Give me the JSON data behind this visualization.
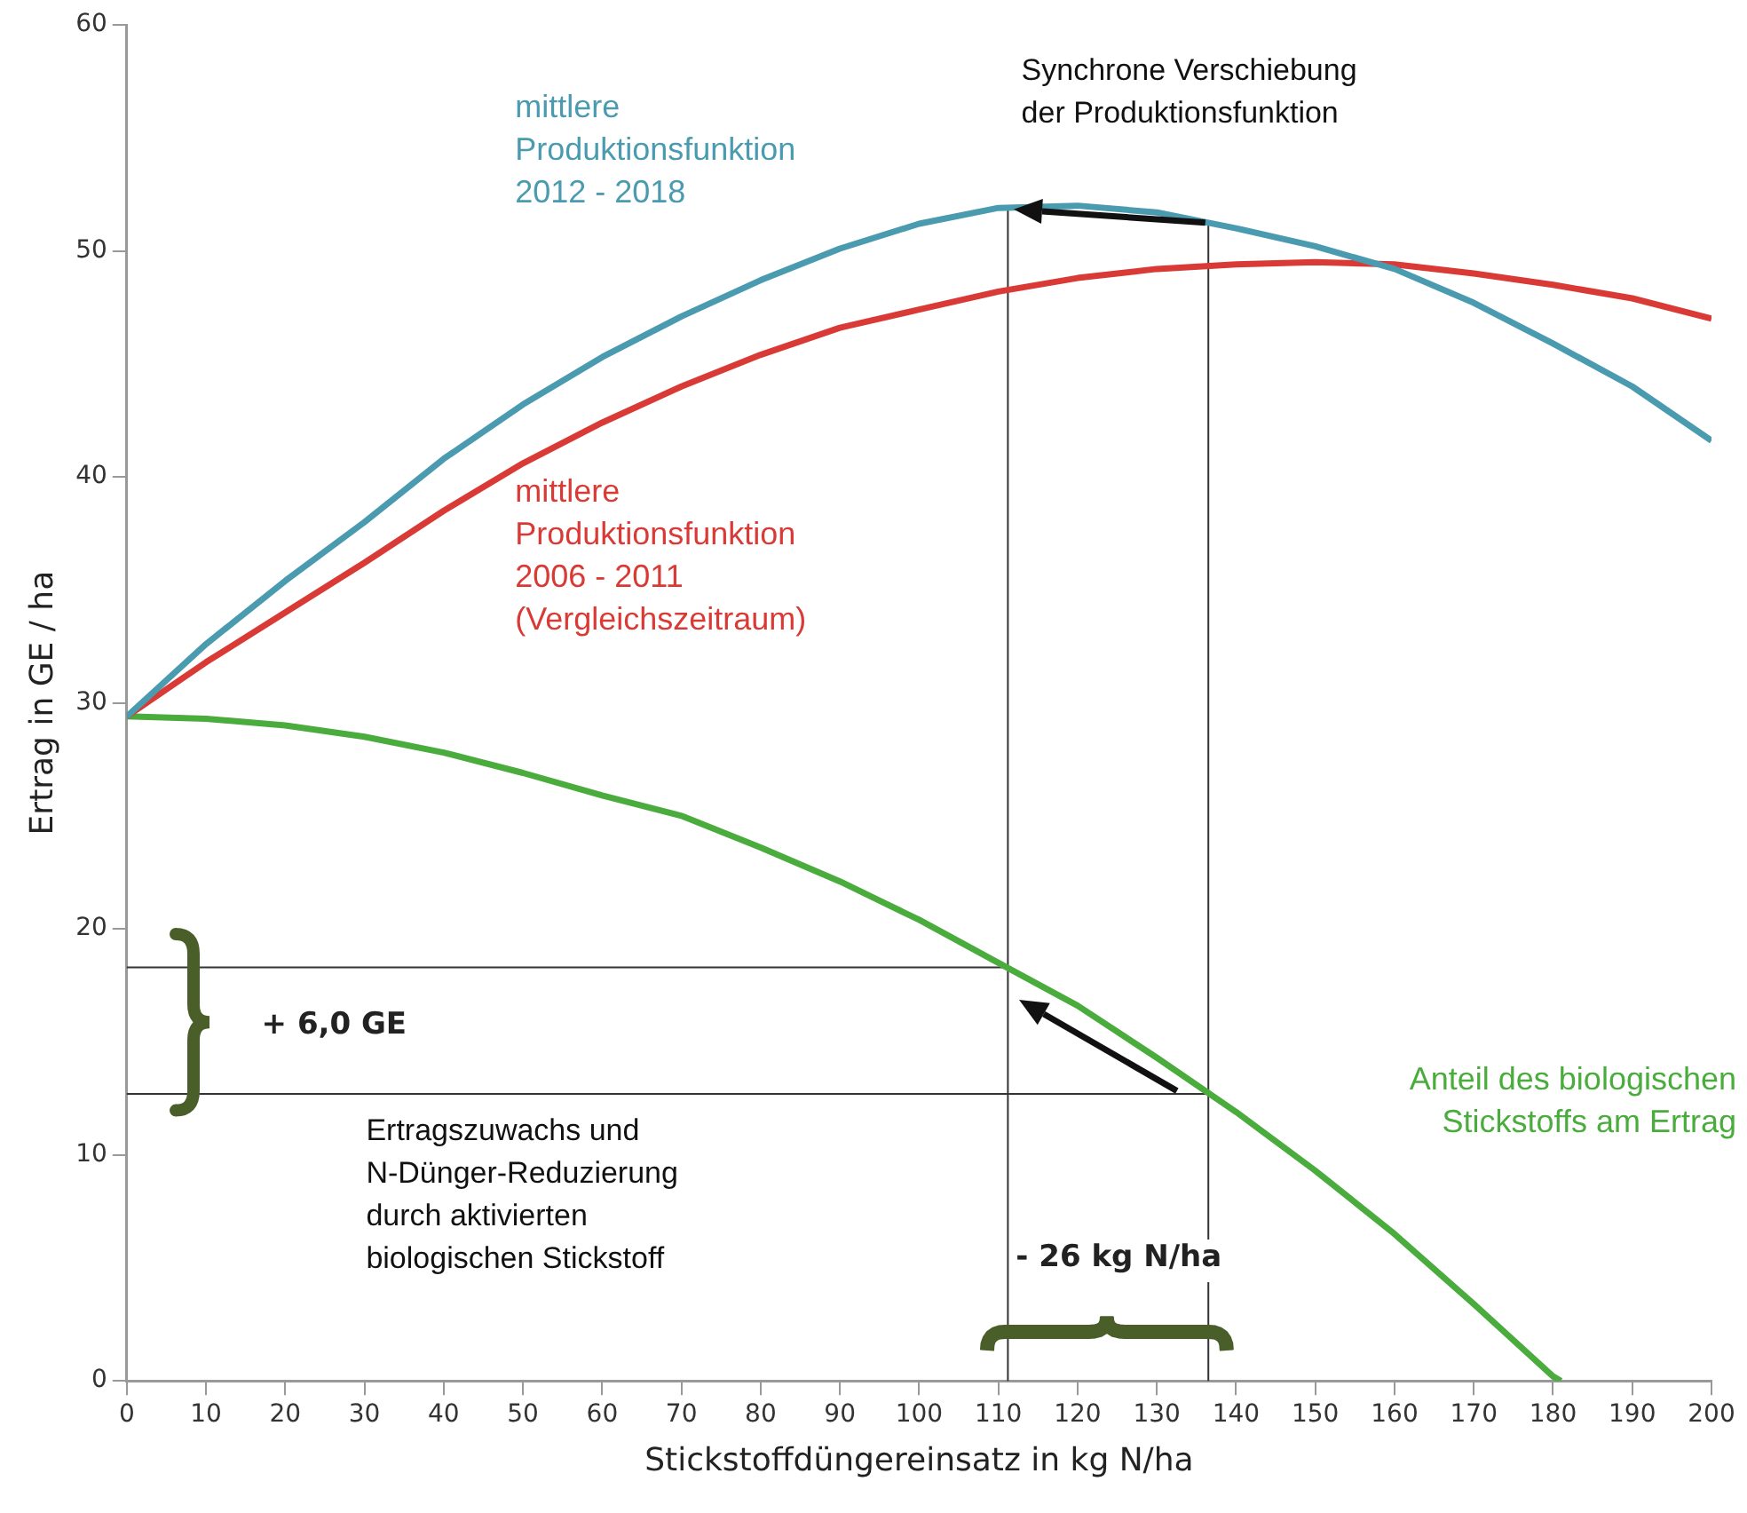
{
  "chart_data": {
    "type": "line",
    "xlabel": "Stickstoffdüngereinsatz in kg N/ha",
    "ylabel": "Ertrag in GE / ha",
    "x": [
      0,
      10,
      20,
      30,
      40,
      50,
      60,
      70,
      80,
      90,
      100,
      110,
      120,
      130,
      140,
      150,
      160,
      170,
      180,
      190,
      200
    ],
    "xlim": [
      0,
      200
    ],
    "xticks": [
      0,
      10,
      20,
      30,
      40,
      50,
      60,
      70,
      80,
      90,
      100,
      110,
      120,
      130,
      140,
      150,
      160,
      170,
      180,
      190,
      200
    ],
    "ylim": [
      0,
      60
    ],
    "yticks": [
      0,
      10,
      20,
      30,
      40,
      50,
      60
    ],
    "grid": false,
    "legend": false,
    "marker": "none",
    "line_style": "solid",
    "series": [
      {
        "name": "mittlere\nProduktionsfunktion\n2012 - 2018",
        "color": "#4a9bb0",
        "values": [
          29.4,
          32.6,
          35.4,
          38.0,
          40.8,
          43.2,
          45.3,
          47.1,
          48.7,
          50.1,
          51.2,
          51.9,
          52.0,
          51.7,
          51.0,
          50.2,
          49.2,
          47.7,
          45.9,
          44.0,
          41.6
        ]
      },
      {
        "name": "mittlere\nProduktionsfunktion\n2006 - 2011\n(Vergleichszeitraum)",
        "color": "#d93a35",
        "values": [
          29.4,
          31.8,
          34.0,
          36.2,
          38.5,
          40.6,
          42.4,
          44.0,
          45.4,
          46.6,
          47.4,
          48.2,
          48.8,
          49.2,
          49.4,
          49.5,
          49.4,
          49.0,
          48.5,
          47.9,
          47.0
        ]
      },
      {
        "name": "Anteil des biologischen\nStickstoffs am Ertrag",
        "color": "#4aac3c",
        "x": [
          0,
          10,
          20,
          30,
          40,
          50,
          60,
          70,
          80,
          90,
          100,
          110,
          120,
          130,
          140,
          150,
          160,
          170,
          180,
          181
        ],
        "values": [
          29.4,
          29.3,
          29.0,
          28.5,
          27.8,
          26.9,
          25.9,
          25.0,
          23.6,
          22.1,
          20.4,
          18.5,
          16.6,
          14.3,
          11.9,
          9.3,
          6.5,
          3.4,
          0.2,
          0
        ]
      }
    ],
    "ref_lines": [
      {
        "axis": "x",
        "value": 111.2,
        "color": "#333333"
      },
      {
        "axis": "x",
        "value": 136.5,
        "color": "#333333"
      },
      {
        "axis": "y",
        "value": 18.3,
        "color": "#333333"
      },
      {
        "axis": "y",
        "value": 12.7,
        "color": "#333333"
      }
    ],
    "annotations": [
      "Synchrone Verschiebung\nder Produktionsfunktion",
      "+ 6,0 GE",
      "- 26 kg N/ha",
      "Ertragszuwachs und\nN-Dünger-Reduzierung\ndurch aktivierten\nbiologischen Stickstoff"
    ]
  }
}
